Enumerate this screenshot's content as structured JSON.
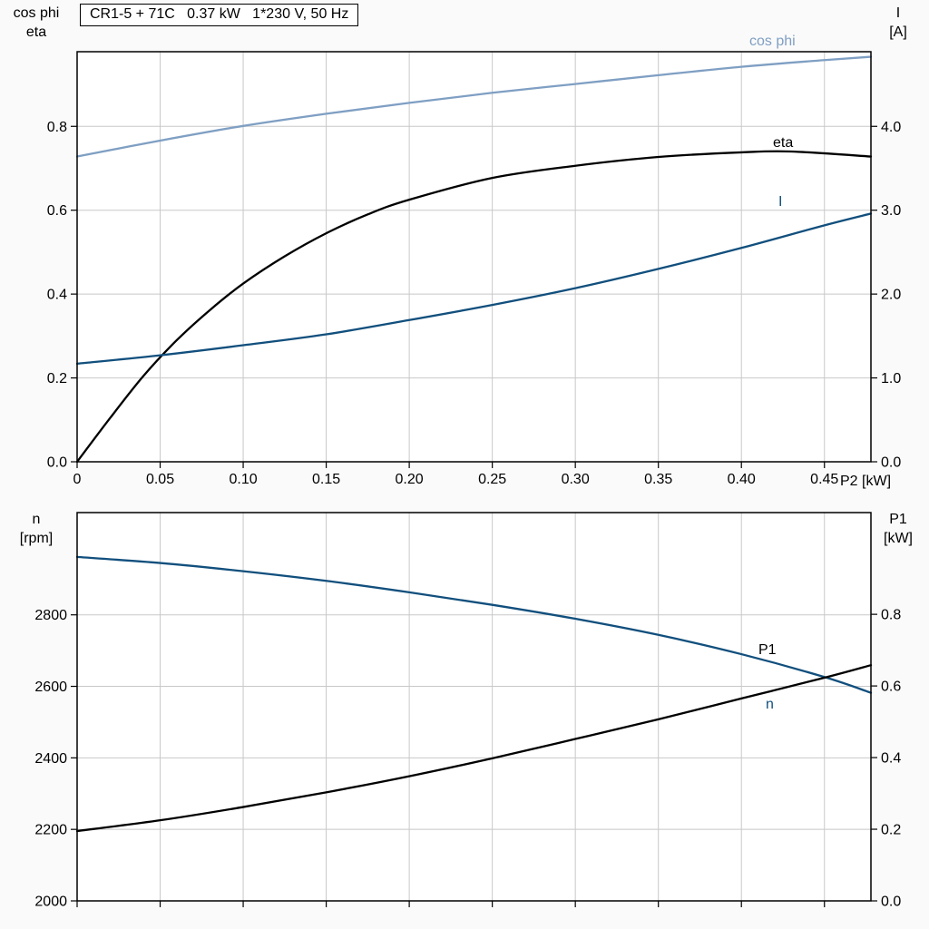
{
  "chart_data": [
    {
      "type": "line",
      "title": "CR1-5 + 71C   0.37 kW   1*230 V, 50 Hz",
      "grid": true,
      "legend": "inline-curve-labels",
      "x_axis": {
        "label": "P2 [kW]",
        "min": 0,
        "max": 0.478,
        "ticks": [
          0,
          0.05,
          0.1,
          0.15,
          0.2,
          0.25,
          0.3,
          0.35,
          0.4,
          0.45
        ],
        "tick_labels": [
          "0",
          "0.05",
          "0.10",
          "0.15",
          "0.20",
          "0.25",
          "0.30",
          "0.35",
          "0.40",
          "0.45"
        ]
      },
      "left_axis": {
        "label_line1": "cos phi",
        "label_line2": "eta",
        "min": 0,
        "max": 0.978,
        "ticks": [
          0,
          0.2,
          0.4,
          0.6,
          0.8
        ],
        "tick_labels": [
          "0.0",
          "0.2",
          "0.4",
          "0.6",
          "0.8"
        ]
      },
      "right_axis": {
        "label_line1": "I",
        "label_line2": "[A]",
        "min": 0,
        "max": 4.89,
        "ticks": [
          0,
          1,
          2,
          3,
          4
        ],
        "tick_labels": [
          "0.0",
          "1.0",
          "2.0",
          "3.0",
          "4.0"
        ]
      },
      "series": [
        {
          "name": "cos phi",
          "axis": "left",
          "color": "#7f9fc3",
          "x": [
            0,
            0.05,
            0.1,
            0.15,
            0.2,
            0.25,
            0.3,
            0.35,
            0.4,
            0.45,
            0.478
          ],
          "y": [
            0.728,
            0.766,
            0.801,
            0.83,
            0.856,
            0.88,
            0.901,
            0.922,
            0.942,
            0.958,
            0.966
          ]
        },
        {
          "name": "eta",
          "axis": "left",
          "color": "#000000",
          "x": [
            0,
            0.02,
            0.04,
            0.06,
            0.08,
            0.1,
            0.125,
            0.15,
            0.175,
            0.2,
            0.25,
            0.3,
            0.35,
            0.4,
            0.43,
            0.478
          ],
          "y": [
            0.0,
            0.105,
            0.205,
            0.29,
            0.362,
            0.425,
            0.49,
            0.545,
            0.59,
            0.625,
            0.677,
            0.706,
            0.727,
            0.738,
            0.74,
            0.728
          ]
        },
        {
          "name": "I",
          "axis": "right",
          "color": "#114f7d",
          "x": [
            0,
            0.05,
            0.1,
            0.15,
            0.2,
            0.25,
            0.3,
            0.35,
            0.4,
            0.45,
            0.478
          ],
          "y": [
            1.17,
            1.27,
            1.39,
            1.52,
            1.69,
            1.87,
            2.07,
            2.3,
            2.55,
            2.82,
            2.96
          ]
        }
      ]
    },
    {
      "type": "line",
      "title": "",
      "grid": true,
      "legend": "inline-curve-labels",
      "x_axis": {
        "label": "",
        "min": 0,
        "max": 0.478,
        "ticks": [
          0,
          0.05,
          0.1,
          0.15,
          0.2,
          0.25,
          0.3,
          0.35,
          0.4,
          0.45
        ],
        "tick_labels": []
      },
      "left_axis": {
        "label_line1": "n",
        "label_line2": "[rpm]",
        "min": 2000,
        "max": 3086,
        "ticks": [
          2000,
          2200,
          2400,
          2600,
          2800
        ],
        "tick_labels": [
          "2000",
          "2200",
          "2400",
          "2600",
          "2800"
        ]
      },
      "right_axis": {
        "label_line1": "P1",
        "label_line2": "[kW]",
        "min": 0,
        "max": 1.084,
        "ticks": [
          0,
          0.2,
          0.4,
          0.6,
          0.8
        ],
        "tick_labels": [
          "0.0",
          "0.2",
          "0.4",
          "0.6",
          "0.8"
        ]
      },
      "series": [
        {
          "name": "n",
          "axis": "left",
          "color": "#114f7d",
          "x": [
            0,
            0.05,
            0.1,
            0.15,
            0.2,
            0.25,
            0.3,
            0.35,
            0.4,
            0.45,
            0.478
          ],
          "y": [
            2962,
            2945,
            2922,
            2895,
            2863,
            2828,
            2789,
            2744,
            2690,
            2626,
            2582
          ]
        },
        {
          "name": "P1",
          "axis": "right",
          "color": "#000000",
          "x": [
            0,
            0.05,
            0.1,
            0.15,
            0.2,
            0.25,
            0.3,
            0.35,
            0.4,
            0.45,
            0.478
          ],
          "y": [
            0.195,
            0.225,
            0.262,
            0.303,
            0.348,
            0.398,
            0.452,
            0.507,
            0.565,
            0.623,
            0.658
          ]
        }
      ]
    }
  ],
  "colors": {
    "plot_background": "#ffffff",
    "grid": "#c8c8c8",
    "border": "#000000",
    "light_blue_curve": "#7f9fc3",
    "dark_blue_curve": "#114f7d",
    "black_curve": "#000000"
  }
}
